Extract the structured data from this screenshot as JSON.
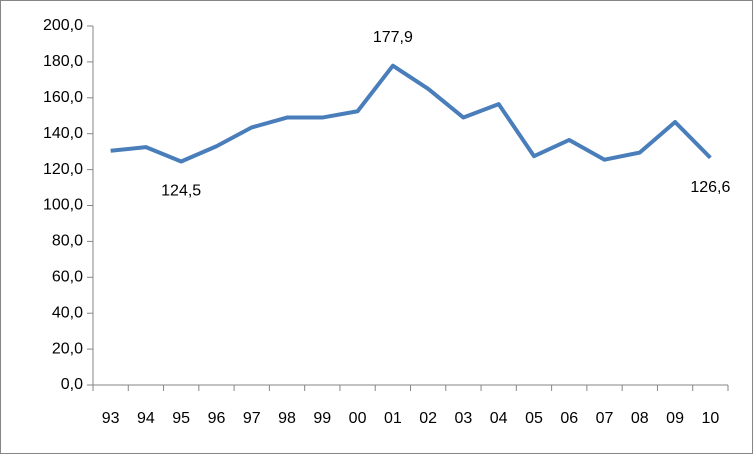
{
  "chart_data": {
    "type": "line",
    "categories": [
      "93",
      "94",
      "95",
      "96",
      "97",
      "98",
      "99",
      "00",
      "01",
      "02",
      "03",
      "04",
      "05",
      "06",
      "07",
      "08",
      "09",
      "10"
    ],
    "series": [
      {
        "color": "#4a7ebb",
        "values": [
          130.5,
          132.5,
          124.5,
          133,
          143.5,
          149,
          149,
          152.5,
          177.9,
          165,
          149,
          156.5,
          127.5,
          136.5,
          125.5,
          129.5,
          146.5,
          126.6
        ],
        "value_labels": [
          null,
          null,
          "124,5",
          null,
          null,
          null,
          null,
          null,
          "177,9",
          null,
          null,
          null,
          null,
          null,
          null,
          null,
          null,
          "126,6"
        ]
      }
    ],
    "ylim": [
      0,
      200
    ],
    "yticks": [
      {
        "value": 0,
        "label": "0,0"
      },
      {
        "value": 20,
        "label": "20,0"
      },
      {
        "value": 40,
        "label": "40,0"
      },
      {
        "value": 60,
        "label": "60,0"
      },
      {
        "value": 80,
        "label": "80,0"
      },
      {
        "value": 100,
        "label": "100,0"
      },
      {
        "value": 120,
        "label": "120,0"
      },
      {
        "value": 140,
        "label": "140,0"
      },
      {
        "value": 160,
        "label": "160,0"
      },
      {
        "value": 180,
        "label": "180,0"
      },
      {
        "value": 200,
        "label": "200,0"
      }
    ],
    "grid": false
  }
}
